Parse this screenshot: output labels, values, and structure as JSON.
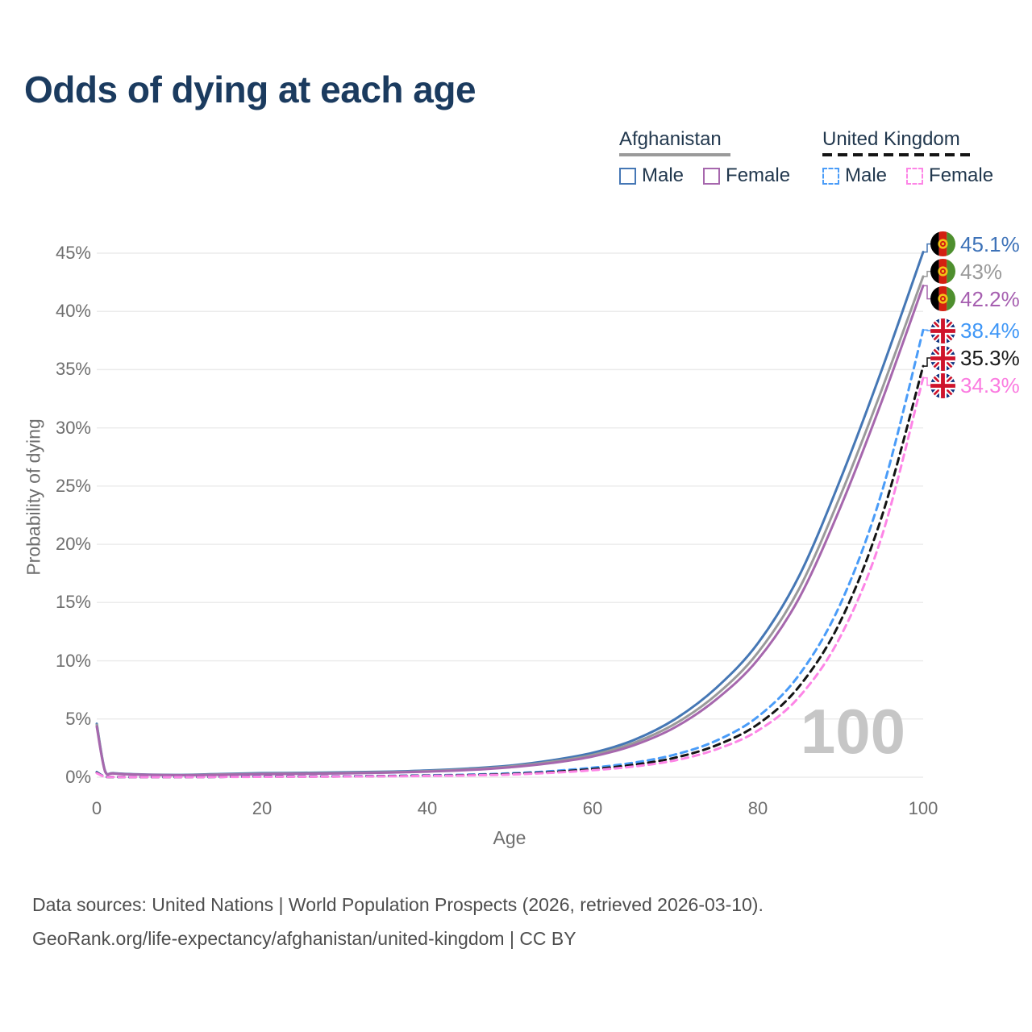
{
  "title": "Odds of dying at each age",
  "legend": {
    "groups": [
      {
        "id": "afghanistan",
        "label": "Afghanistan",
        "line_style": "solid",
        "line_color": "#9a9a9a",
        "underline_width": 138,
        "items": [
          {
            "label": "Male",
            "color": "#4577b5",
            "style": "solid"
          },
          {
            "label": "Female",
            "color": "#a667ad",
            "style": "solid"
          }
        ]
      },
      {
        "id": "united-kingdom",
        "label": "United Kingdom",
        "line_style": "dashed",
        "line_color": "#141414",
        "underline_width": 188,
        "items": [
          {
            "label": "Male",
            "color": "#4a9cf8",
            "style": "dashed"
          },
          {
            "label": "Female",
            "color": "#fd85e6",
            "style": "dashed"
          }
        ]
      }
    ]
  },
  "chart_data": {
    "type": "line",
    "title": "Odds of dying at each age",
    "xlabel": "Age",
    "ylabel": "Probability of dying",
    "xlim": [
      0,
      100
    ],
    "ylim": [
      0,
      45
    ],
    "x_ticks": [
      0,
      20,
      40,
      60,
      80,
      100
    ],
    "y_ticks": [
      0,
      5,
      10,
      15,
      20,
      25,
      30,
      35,
      40,
      45
    ],
    "y_tick_suffix": "%",
    "grid": "horizontal",
    "legend_position": "top-right",
    "watermark": "100",
    "ages": [
      0,
      1,
      2,
      5,
      10,
      15,
      20,
      25,
      30,
      35,
      40,
      45,
      50,
      55,
      60,
      65,
      70,
      75,
      80,
      85,
      90,
      95,
      100
    ],
    "series": [
      {
        "name": "Afghanistan Male",
        "country": "Afghanistan",
        "sex": "Male",
        "color": "#4577b5",
        "dash": false,
        "flag": "afghanistan",
        "end_label": "45.1%",
        "end_label_color": "#3d72b8",
        "values": [
          4.6,
          0.55,
          0.35,
          0.25,
          0.2,
          0.28,
          0.35,
          0.38,
          0.42,
          0.48,
          0.58,
          0.75,
          1.0,
          1.45,
          2.1,
          3.2,
          5.0,
          7.7,
          11.5,
          17.3,
          25.6,
          35.0,
          45.1
        ]
      },
      {
        "name": "Afghanistan",
        "country": "Afghanistan",
        "sex": "All",
        "color": "#9a9a9a",
        "dash": false,
        "flag": "afghanistan",
        "end_label": "43%",
        "end_label_color": "#9a9a9a",
        "values": [
          4.5,
          0.52,
          0.33,
          0.23,
          0.18,
          0.24,
          0.3,
          0.33,
          0.37,
          0.43,
          0.52,
          0.67,
          0.92,
          1.32,
          1.92,
          2.95,
          4.6,
          7.1,
          10.7,
          16.2,
          24.2,
          33.3,
          43.0
        ]
      },
      {
        "name": "Afghanistan Female",
        "country": "Afghanistan",
        "sex": "Female",
        "color": "#a667ad",
        "dash": false,
        "flag": "afghanistan",
        "end_label": "42.2%",
        "end_label_color": "#a65fb0",
        "values": [
          4.35,
          0.5,
          0.32,
          0.22,
          0.17,
          0.21,
          0.26,
          0.29,
          0.33,
          0.39,
          0.48,
          0.62,
          0.85,
          1.22,
          1.78,
          2.75,
          4.3,
          6.7,
          10.1,
          15.4,
          23.2,
          32.3,
          42.2
        ]
      },
      {
        "name": "United Kingdom Male",
        "country": "United Kingdom",
        "sex": "Male",
        "color": "#4a9cf8",
        "dash": true,
        "flag": "united-kingdom",
        "end_label": "38.4%",
        "end_label_color": "#3f97f7",
        "values": [
          0.45,
          0.04,
          0.02,
          0.01,
          0.01,
          0.03,
          0.06,
          0.07,
          0.09,
          0.12,
          0.16,
          0.22,
          0.33,
          0.52,
          0.82,
          1.25,
          1.95,
          3.15,
          5.2,
          8.8,
          14.9,
          24.5,
          38.4
        ]
      },
      {
        "name": "United Kingdom",
        "country": "United Kingdom",
        "sex": "All",
        "color": "#141414",
        "dash": true,
        "flag": "united-kingdom",
        "end_label": "35.3%",
        "end_label_color": "#1a1a1a",
        "values": [
          0.4,
          0.035,
          0.018,
          0.01,
          0.01,
          0.025,
          0.05,
          0.055,
          0.07,
          0.1,
          0.13,
          0.18,
          0.28,
          0.44,
          0.7,
          1.07,
          1.68,
          2.75,
          4.55,
          7.8,
          13.4,
          22.4,
          35.3
        ]
      },
      {
        "name": "United Kingdom Female",
        "country": "United Kingdom",
        "sex": "Female",
        "color": "#fd85e6",
        "dash": true,
        "flag": "united-kingdom",
        "end_label": "34.3%",
        "end_label_color": "#fb7be0",
        "values": [
          0.35,
          0.03,
          0.015,
          0.01,
          0.008,
          0.02,
          0.035,
          0.045,
          0.06,
          0.08,
          0.11,
          0.15,
          0.23,
          0.38,
          0.6,
          0.92,
          1.45,
          2.4,
          4.0,
          6.9,
          12.1,
          20.7,
          34.3
        ]
      }
    ],
    "flag_colors": {
      "afghanistan": {
        "black": "#000000",
        "red": "#d32011",
        "green": "#4e8f2e",
        "gold": "#f3c317"
      },
      "united_kingdom": {
        "blue": "#0b2f7d",
        "red": "#cf142b",
        "white": "#ffffff"
      }
    },
    "grid_color": "#ececec"
  },
  "footer": {
    "line1": "Data sources: United Nations | World Population Prospects (2026, retrieved 2026-03-10).",
    "line2": "GeoRank.org/life-expectancy/afghanistan/united-kingdom | CC BY"
  }
}
